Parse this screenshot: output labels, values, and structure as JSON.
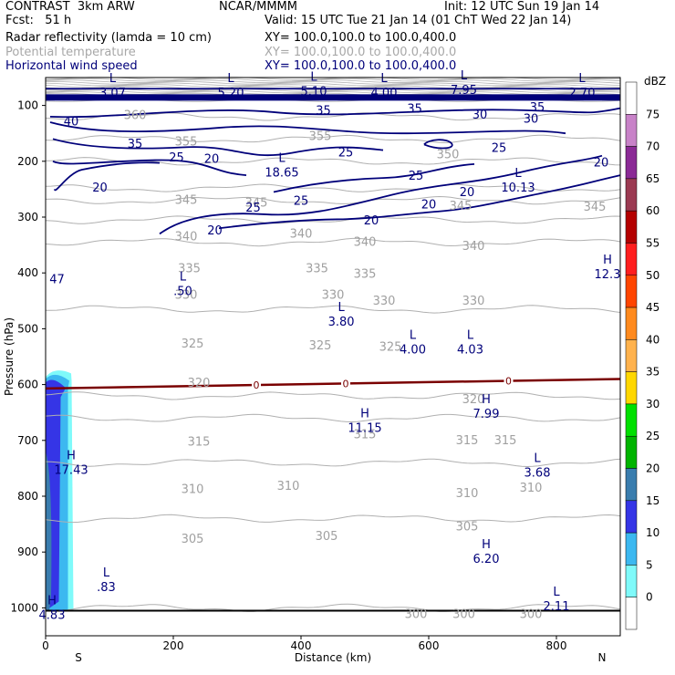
{
  "header": {
    "model": "CONTRAST  3km ARW",
    "org": "NCAR/MMMM",
    "init": "Init: 12 UTC Sun 19 Jan 14",
    "fcst": "Fcst:   51 h",
    "valid": "Valid: 15 UTC Tue 21 Jan 14 (01 ChT Wed 22 Jan 14)",
    "fields": [
      {
        "name": "Radar reflectivity (lamda = 10 cm)",
        "xy": "XY= 100.0,100.0 to 100.0,400.0",
        "color": "#000000"
      },
      {
        "name": "Potential temperature",
        "xy": "XY= 100.0,100.0 to 100.0,400.0",
        "color": "#a8a8a8"
      },
      {
        "name": "Horizontal wind speed",
        "xy": "XY= 100.0,100.0 to 100.0,400.0",
        "color": "#00007a"
      }
    ]
  },
  "chart_data": {
    "type": "contour-cross-section",
    "xlabel": "Distance (km)",
    "ylabel": "Pressure (hPa)",
    "xlim": [
      0,
      900
    ],
    "ylim": [
      1050,
      50
    ],
    "x_ticks": [
      0,
      200,
      400,
      600,
      800
    ],
    "x_tick_labels": [
      "0",
      "200",
      "400",
      "600",
      "800"
    ],
    "y_ticks": [
      100,
      200,
      300,
      400,
      500,
      600,
      700,
      800,
      900,
      1000
    ],
    "y_tick_labels": [
      "100",
      "200",
      "300",
      "400",
      "500",
      "600",
      "700",
      "800",
      "900",
      "1000"
    ],
    "x_end_labels": {
      "left": "S",
      "right": "N"
    },
    "colorbar": {
      "unit": "dBZ",
      "levels": [
        "0",
        "5",
        "10",
        "15",
        "20",
        "25",
        "30",
        "35",
        "40",
        "45",
        "50",
        "55",
        "60",
        "65",
        "70",
        "75"
      ],
      "colors": [
        "#ffffff",
        "#7ffafa",
        "#3cb8f0",
        "#3535e6",
        "#3a7dae",
        "#00b400",
        "#00e000",
        "#ffd700",
        "#ffb24d",
        "#ff8a1e",
        "#ff4500",
        "#ff1e1e",
        "#b40000",
        "#9b3a52",
        "#8b2a96",
        "#c882c8",
        "#ffffff"
      ]
    },
    "theta_contours": [
      {
        "value": 360,
        "p": 120
      },
      {
        "value": 355,
        "p": 160
      },
      {
        "value": 350,
        "p": 200
      },
      {
        "value": 345,
        "p": 248
      },
      {
        "value": 340,
        "p": 270
      },
      {
        "value": 335,
        "p": 305
      },
      {
        "value": 330,
        "p": 345
      },
      {
        "value": 325,
        "p": 465
      },
      {
        "value": 320,
        "p": 620
      },
      {
        "value": 315,
        "p": 660
      },
      {
        "value": 310,
        "p": 740
      },
      {
        "value": 305,
        "p": 840
      },
      {
        "value": 300,
        "p": 1000
      }
    ],
    "theta_labels": [
      {
        "text": "360",
        "x": 140,
        "p": 118
      },
      {
        "text": "355",
        "x": 220,
        "p": 165
      },
      {
        "text": "355",
        "x": 430,
        "p": 155
      },
      {
        "text": "350",
        "x": 630,
        "p": 188
      },
      {
        "text": "345",
        "x": 220,
        "p": 270
      },
      {
        "text": "345",
        "x": 330,
        "p": 275
      },
      {
        "text": "345",
        "x": 650,
        "p": 280
      },
      {
        "text": "345",
        "x": 860,
        "p": 282
      },
      {
        "text": "340",
        "x": 220,
        "p": 335
      },
      {
        "text": "340",
        "x": 400,
        "p": 330
      },
      {
        "text": "340",
        "x": 500,
        "p": 345
      },
      {
        "text": "340",
        "x": 670,
        "p": 352
      },
      {
        "text": "335",
        "x": 225,
        "p": 392
      },
      {
        "text": "335",
        "x": 425,
        "p": 392
      },
      {
        "text": "335",
        "x": 500,
        "p": 402
      },
      {
        "text": "330",
        "x": 220,
        "p": 440
      },
      {
        "text": "330",
        "x": 450,
        "p": 440
      },
      {
        "text": "330",
        "x": 530,
        "p": 450
      },
      {
        "text": "330",
        "x": 670,
        "p": 450
      },
      {
        "text": "325",
        "x": 230,
        "p": 527
      },
      {
        "text": "325",
        "x": 430,
        "p": 530
      },
      {
        "text": "325",
        "x": 540,
        "p": 533
      },
      {
        "text": "320",
        "x": 240,
        "p": 597
      },
      {
        "text": "320",
        "x": 670,
        "p": 627
      },
      {
        "text": "315",
        "x": 240,
        "p": 703
      },
      {
        "text": "315",
        "x": 500,
        "p": 690
      },
      {
        "text": "315",
        "x": 660,
        "p": 700
      },
      {
        "text": "315",
        "x": 720,
        "p": 700
      },
      {
        "text": "310",
        "x": 230,
        "p": 788
      },
      {
        "text": "310",
        "x": 380,
        "p": 782
      },
      {
        "text": "310",
        "x": 660,
        "p": 795
      },
      {
        "text": "310",
        "x": 760,
        "p": 785
      },
      {
        "text": "305",
        "x": 230,
        "p": 877
      },
      {
        "text": "305",
        "x": 440,
        "p": 872
      },
      {
        "text": "305",
        "x": 660,
        "p": 855
      },
      {
        "text": "300",
        "x": 580,
        "p": 1012
      },
      {
        "text": "300",
        "x": 655,
        "p": 1012
      },
      {
        "text": "300",
        "x": 760,
        "p": 1012
      }
    ],
    "wind_labels": [
      {
        "text": "40",
        "x": 40,
        "p": 128
      },
      {
        "text": "35",
        "x": 140,
        "p": 168
      },
      {
        "text": "25",
        "x": 205,
        "p": 192
      },
      {
        "text": "20",
        "x": 260,
        "p": 195
      },
      {
        "text": "20",
        "x": 85,
        "p": 246
      },
      {
        "text": "20",
        "x": 265,
        "p": 323
      },
      {
        "text": "25",
        "x": 325,
        "p": 282
      },
      {
        "text": "25",
        "x": 400,
        "p": 270
      },
      {
        "text": "20",
        "x": 510,
        "p": 305
      },
      {
        "text": "25",
        "x": 470,
        "p": 183
      },
      {
        "text": "25",
        "x": 580,
        "p": 225
      },
      {
        "text": "20",
        "x": 600,
        "p": 276
      },
      {
        "text": "20",
        "x": 660,
        "p": 254
      },
      {
        "text": "25",
        "x": 710,
        "p": 175
      },
      {
        "text": "35",
        "x": 435,
        "p": 108
      },
      {
        "text": "35",
        "x": 578,
        "p": 105
      },
      {
        "text": "30",
        "x": 680,
        "p": 115
      },
      {
        "text": "30",
        "x": 760,
        "p": 123
      },
      {
        "text": "35",
        "x": 770,
        "p": 102
      },
      {
        "text": "20",
        "x": 870,
        "p": 201
      }
    ],
    "extrema": [
      {
        "type": "L",
        "value": "3.07",
        "x": 105,
        "p": 65
      },
      {
        "type": "L",
        "value": "5.20",
        "x": 290,
        "p": 65
      },
      {
        "type": "L",
        "value": "5.10",
        "x": 420,
        "p": 62
      },
      {
        "type": "L",
        "value": "4.00",
        "x": 530,
        "p": 65
      },
      {
        "type": "L",
        "value": "7.95",
        "x": 655,
        "p": 60
      },
      {
        "type": "L",
        "value": "2.70",
        "x": 840,
        "p": 65
      },
      {
        "type": "L",
        "value": "18.65",
        "x": 370,
        "p": 208
      },
      {
        "type": "L",
        "value": "10.13",
        "x": 740,
        "p": 235
      },
      {
        "type": "H",
        "value": "12.3",
        "x": 880,
        "p": 390
      },
      {
        "type": "L",
        "value": ".50",
        "x": 215,
        "p": 420
      },
      {
        "type": "L",
        "value": "3.80",
        "x": 463,
        "p": 475
      },
      {
        "type": "L",
        "value": "4.00",
        "x": 575,
        "p": 525
      },
      {
        "type": "L",
        "value": "4.03",
        "x": 665,
        "p": 525
      },
      {
        "type": "H",
        "value": "7.99",
        "x": 690,
        "p": 640
      },
      {
        "type": "H",
        "value": "11.15",
        "x": 500,
        "p": 665
      },
      {
        "type": "H",
        "value": "17.43",
        "x": 40,
        "p": 740
      },
      {
        "type": "L",
        "value": "3.68",
        "x": 770,
        "p": 745
      },
      {
        "type": "H",
        "value": "6.20",
        "x": 690,
        "p": 900
      },
      {
        "type": "L",
        "value": ".83",
        "x": 95,
        "p": 950
      },
      {
        "type": "L",
        "value": "2.11",
        "x": 800,
        "p": 985
      },
      {
        "type": "H",
        "value": "4.83",
        "x": 10,
        "p": 1000
      }
    ],
    "left_edge_labels": [
      {
        "text": "47",
        "x": 6,
        "p": 410
      }
    ],
    "zero_isotherm": {
      "value": "0",
      "p_left": 607,
      "p_right": 590,
      "label_x": [
        330,
        470,
        725
      ]
    },
    "reflectivity_region": {
      "x_from": 0,
      "x_to": 55,
      "p_top": 580,
      "p_bottom": 1005,
      "max_dbz": 20
    }
  }
}
